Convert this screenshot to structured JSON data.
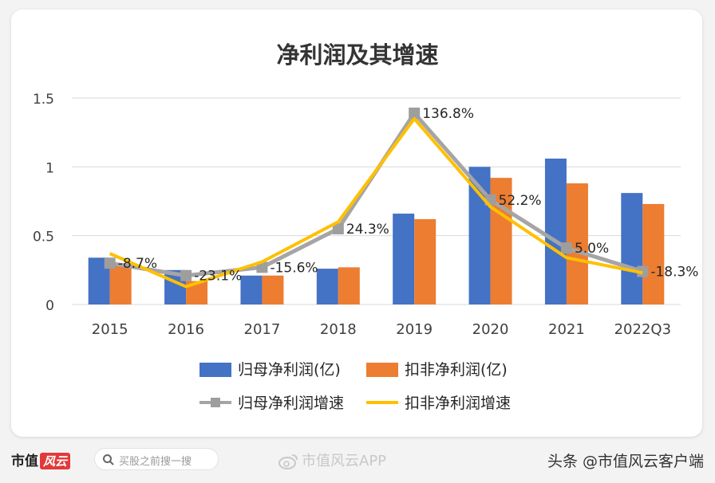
{
  "chart_data": {
    "type": "bar+line",
    "title": "净利润及其增速",
    "categories": [
      "2015",
      "2016",
      "2017",
      "2018",
      "2019",
      "2020",
      "2021",
      "2022Q3"
    ],
    "ylim": [
      0,
      1.5
    ],
    "yticks": [
      "0",
      "0.5",
      "1",
      "1.5"
    ],
    "grid": true,
    "legend_position": "bottom",
    "bar_series": [
      {
        "name": "归母净利润(亿)",
        "color": "#4472c4",
        "values": [
          0.34,
          0.25,
          0.21,
          0.26,
          0.66,
          1.0,
          1.06,
          0.81
        ]
      },
      {
        "name": "扣非净利润(亿)",
        "color": "#ed7d31",
        "values": [
          0.3,
          0.17,
          0.21,
          0.27,
          0.62,
          0.92,
          0.88,
          0.73
        ]
      }
    ],
    "line_series": [
      {
        "name": "归母净利润增速",
        "color": "#a5a5a5",
        "marker": "square",
        "values": [
          0.3,
          0.21,
          0.27,
          0.55,
          1.39,
          0.76,
          0.41,
          0.24
        ]
      },
      {
        "name": "扣非净利润增速",
        "color": "#ffc000",
        "marker": "none",
        "values": [
          0.37,
          0.13,
          0.31,
          0.6,
          1.35,
          0.71,
          0.34,
          0.23
        ]
      }
    ],
    "data_labels": [
      "-8.7%",
      "-23.1%",
      "-15.6%",
      "24.3%",
      "136.8%",
      "52.2%",
      "5.0%",
      "-18.3%"
    ]
  },
  "footer": {
    "brand": "市值",
    "brand_badge": "风云",
    "search_placeholder": "买股之前搜一搜",
    "watermark": "市值风云APP",
    "credit": "头条 @市值风云客户端"
  },
  "colors": {
    "grid": "#d9d9d9",
    "axis_text": "#404040",
    "title": "#333333"
  }
}
